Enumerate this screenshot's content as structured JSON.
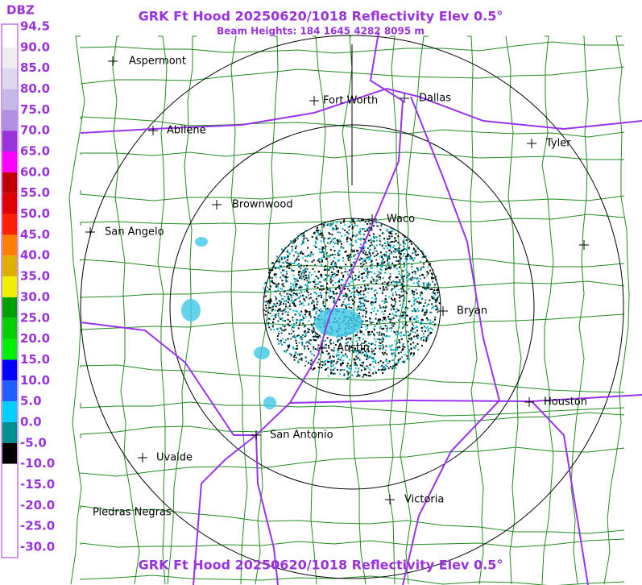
{
  "title": "GRK Ft Hood 20250620/1018 Reflectivity Elev 0.5°",
  "subtitle": "Beam Heights: 184 1645 4282 8095 m",
  "footer_title": "GRK Ft Hood 20250620/1018 Reflectivity Elev 0.5°",
  "legend": {
    "unit": "DBZ",
    "labels": [
      "94.5",
      "90.0",
      "85.0",
      "80.0",
      "75.0",
      "70.0",
      "65.0",
      "60.0",
      "55.0",
      "50.0",
      "45.0",
      "40.0",
      "35.0",
      "30.0",
      "25.0",
      "20.0",
      "15.0",
      "10.0",
      "5.0",
      "0.0",
      "-5.0",
      "-10.0",
      "-15.0",
      "-20.0",
      "-25.0",
      "-30.0"
    ]
  },
  "cities": [
    "Aspermont",
    "Fort Worth",
    "Dallas",
    "Abilene",
    "Tyler",
    "Brownwood",
    "Waco",
    "San Angelo",
    "Bryan",
    "Austin",
    "Houston",
    "San Antonio",
    "Uvalde",
    "Victoria",
    "Piedras Negras"
  ]
}
